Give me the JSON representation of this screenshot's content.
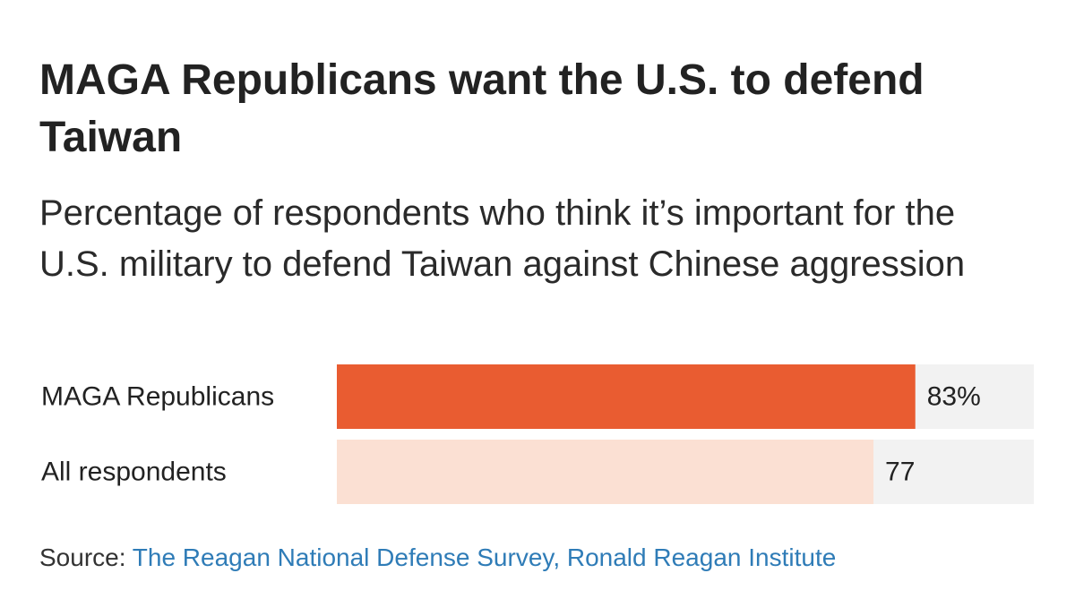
{
  "title": "MAGA Republicans want the U.S. to defend Taiwan",
  "subtitle": "Percentage of respondents who think it’s important for the U.S. military to defend Taiwan against Chinese aggression",
  "source": {
    "label": "Source:",
    "link_text": "The Reagan National Defense Survey, Ronald Reagan Institute"
  },
  "colors": {
    "track": "#f2f2f2",
    "bar_primary": "#e95c31",
    "bar_secondary": "#fbe0d3",
    "link": "#2f7cb7"
  },
  "chart_data": {
    "type": "bar",
    "orientation": "horizontal",
    "categories": [
      "MAGA Republicans",
      "All respondents"
    ],
    "values": [
      83,
      77
    ],
    "value_labels": [
      "83%",
      "77"
    ],
    "xlim": [
      0,
      100
    ],
    "grid": false,
    "title": "MAGA Republicans want the U.S. to defend Taiwan",
    "xlabel": "",
    "ylabel": ""
  }
}
